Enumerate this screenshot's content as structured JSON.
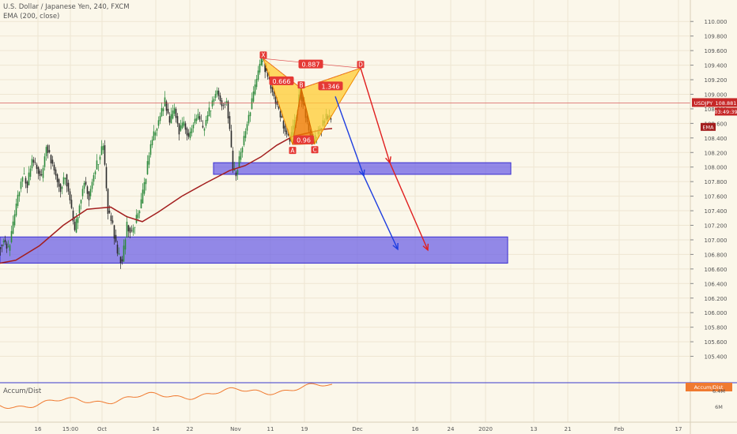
{
  "header": {
    "symbol_title": "U.S. Dollar / Japanese Yen, 240, FXCM",
    "indicator": "EMA (200, close)"
  },
  "chart_data": {
    "type": "candlestick",
    "symbol": "USDJPY",
    "interval": "240",
    "ylim": [
      105.2,
      110.1
    ],
    "y_ticks": [
      "110.000",
      "109.800",
      "109.600",
      "109.400",
      "109.200",
      "109.000",
      "108.800",
      "108.600",
      "108.400",
      "108.200",
      "108.000",
      "107.800",
      "107.600",
      "107.400",
      "107.200",
      "107.000",
      "106.800",
      "106.600",
      "106.400",
      "106.200",
      "106.000",
      "105.800",
      "105.600",
      "105.400"
    ],
    "x_ticks": [
      {
        "label": "16",
        "x": 48
      },
      {
        "label": "15:00",
        "x": 89
      },
      {
        "label": "Oct",
        "x": 129
      },
      {
        "label": "14",
        "x": 197
      },
      {
        "label": "22",
        "x": 240
      },
      {
        "label": "Nov",
        "x": 298
      },
      {
        "label": "11",
        "x": 342
      },
      {
        "label": "19",
        "x": 385
      },
      {
        "label": "Dec",
        "x": 452
      },
      {
        "label": "16",
        "x": 525
      },
      {
        "label": "24",
        "x": 570
      },
      {
        "label": "2020",
        "x": 614
      },
      {
        "label": "13",
        "x": 675
      },
      {
        "label": "21",
        "x": 718
      },
      {
        "label": "Feb",
        "x": 783
      },
      {
        "label": "17",
        "x": 858
      }
    ],
    "current_price": 108.881,
    "price_tag": "USDJPY",
    "price_value": "108.881",
    "countdown": "03:49:39",
    "ema_tag": "EMA",
    "pattern": {
      "points": [
        {
          "label": "X",
          "x": 333,
          "y": 109.49
        },
        {
          "label": "A",
          "x": 370,
          "y": 108.31
        },
        {
          "label": "B",
          "x": 381,
          "y": 109.08
        },
        {
          "label": "C",
          "x": 398,
          "y": 108.32
        },
        {
          "label": "D",
          "x": 456,
          "y": 109.36
        }
      ],
      "ratios": [
        {
          "label": "0.887",
          "x": 393,
          "y": 109.41
        },
        {
          "label": "0.666",
          "x": 356,
          "y": 109.18
        },
        {
          "label": "1.346",
          "x": 418,
          "y": 109.11
        },
        {
          "label": "0.96",
          "x": 384,
          "y": 108.37
        }
      ]
    },
    "zones": [
      {
        "x_start": 270,
        "x_end": 646,
        "y_top": 108.06,
        "y_bottom": 107.9
      },
      {
        "x_start": 0,
        "x_end": 642,
        "y_top": 107.04,
        "y_bottom": 106.68
      }
    ],
    "arrows": [
      {
        "color": "#e01e1e",
        "from": [
          456,
          109.36
        ],
        "to": [
          493,
          108.06
        ]
      },
      {
        "color": "#e01e1e",
        "from": [
          493,
          108.06
        ],
        "to": [
          541,
          106.86
        ]
      },
      {
        "color": "#1e3ee0",
        "from": [
          424,
          108.97
        ],
        "to": [
          460,
          107.88
        ]
      },
      {
        "color": "#1e3ee0",
        "from": [
          460,
          107.88
        ],
        "to": [
          503,
          106.87
        ]
      }
    ],
    "ema_points": [
      [
        0,
        106.68
      ],
      [
        20,
        106.72
      ],
      [
        50,
        106.92
      ],
      [
        80,
        107.2
      ],
      [
        110,
        107.42
      ],
      [
        140,
        107.45
      ],
      [
        160,
        107.32
      ],
      [
        180,
        107.25
      ],
      [
        200,
        107.38
      ],
      [
        230,
        107.6
      ],
      [
        260,
        107.78
      ],
      [
        290,
        107.95
      ],
      [
        310,
        108.02
      ],
      [
        330,
        108.14
      ],
      [
        350,
        108.3
      ],
      [
        370,
        108.42
      ],
      [
        390,
        108.47
      ],
      [
        410,
        108.52
      ],
      [
        420,
        108.53
      ]
    ],
    "price_path": [
      [
        0,
        106.9
      ],
      [
        6,
        107.0
      ],
      [
        12,
        106.85
      ],
      [
        18,
        107.2
      ],
      [
        24,
        107.6
      ],
      [
        30,
        107.9
      ],
      [
        36,
        107.75
      ],
      [
        42,
        108.1
      ],
      [
        48,
        108.0
      ],
      [
        54,
        107.85
      ],
      [
        60,
        108.3
      ],
      [
        66,
        108.1
      ],
      [
        72,
        107.9
      ],
      [
        78,
        107.7
      ],
      [
        84,
        107.9
      ],
      [
        90,
        107.55
      ],
      [
        96,
        107.1
      ],
      [
        102,
        107.5
      ],
      [
        108,
        107.8
      ],
      [
        114,
        107.6
      ],
      [
        120,
        107.9
      ],
      [
        126,
        108.1
      ],
      [
        132,
        108.3
      ],
      [
        138,
        107.4
      ],
      [
        144,
        107.2
      ],
      [
        150,
        106.8
      ],
      [
        156,
        106.7
      ],
      [
        162,
        107.2
      ],
      [
        168,
        107.1
      ],
      [
        174,
        107.3
      ],
      [
        180,
        107.5
      ],
      [
        186,
        107.9
      ],
      [
        192,
        108.3
      ],
      [
        198,
        108.5
      ],
      [
        204,
        108.7
      ],
      [
        210,
        108.9
      ],
      [
        216,
        108.6
      ],
      [
        222,
        108.8
      ],
      [
        228,
        108.5
      ],
      [
        234,
        108.6
      ],
      [
        240,
        108.4
      ],
      [
        246,
        108.6
      ],
      [
        252,
        108.7
      ],
      [
        258,
        108.5
      ],
      [
        264,
        108.7
      ],
      [
        270,
        108.9
      ],
      [
        276,
        109.05
      ],
      [
        282,
        108.85
      ],
      [
        288,
        108.9
      ],
      [
        292,
        108.5
      ],
      [
        296,
        107.95
      ],
      [
        300,
        107.9
      ],
      [
        306,
        108.2
      ],
      [
        312,
        108.5
      ],
      [
        318,
        108.8
      ],
      [
        324,
        109.1
      ],
      [
        330,
        109.4
      ],
      [
        333,
        109.49
      ],
      [
        338,
        109.3
      ],
      [
        344,
        109.1
      ],
      [
        350,
        108.9
      ],
      [
        356,
        108.7
      ],
      [
        362,
        108.5
      ],
      [
        368,
        108.35
      ],
      [
        374,
        108.6
      ],
      [
        381,
        109.05
      ],
      [
        386,
        108.8
      ],
      [
        392,
        108.5
      ],
      [
        398,
        108.35
      ],
      [
        404,
        108.5
      ],
      [
        410,
        108.6
      ],
      [
        414,
        108.7
      ],
      [
        420,
        108.65
      ]
    ],
    "lower_panel": {
      "title": "Accum/Dist",
      "tag": "Accum/Dist",
      "ticks": [
        "6.4M",
        "6M"
      ]
    }
  }
}
